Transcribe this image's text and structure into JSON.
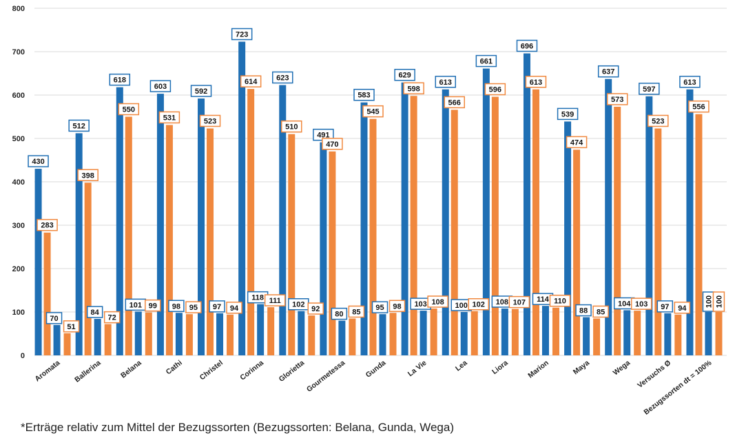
{
  "chart_data": {
    "type": "bar",
    "categories": [
      "Aromata",
      "Ballerina",
      "Belana",
      "Cathi",
      "Christel",
      "Corinna",
      "Glorietta",
      "Gourmetessa",
      "Gunda",
      "La Vie",
      "Lea",
      "Liora",
      "Marion",
      "Maya",
      "Wega",
      "Versuchs Ø",
      "Bezugssorten dt = 100%"
    ],
    "series": [
      {
        "color": "#1f6fb4",
        "values": [
          430,
          512,
          618,
          603,
          592,
          723,
          623,
          491,
          583,
          629,
          613,
          661,
          696,
          539,
          637,
          597,
          613
        ]
      },
      {
        "color": "#f0883e",
        "values": [
          283,
          398,
          550,
          531,
          523,
          614,
          510,
          470,
          545,
          598,
          566,
          596,
          613,
          474,
          573,
          523,
          556
        ]
      },
      {
        "color": "#1f6fb4",
        "values": [
          70,
          84,
          101,
          98,
          97,
          118,
          102,
          80,
          95,
          103,
          100,
          108,
          114,
          88,
          104,
          97,
          100
        ]
      },
      {
        "color": "#f0883e",
        "values": [
          51,
          72,
          99,
          95,
          94,
          111,
          92,
          85,
          98,
          108,
          102,
          107,
          110,
          85,
          103,
          94,
          100
        ]
      }
    ],
    "yticks": [
      "0",
      "100",
      "200",
      "300",
      "400",
      "500",
      "600",
      "700",
      "800"
    ],
    "ylim": [
      0,
      800
    ],
    "grid": true,
    "footnote": "*Erträge relativ zum Mittel der Bezugssorten (Bezugssorten: Belana, Gunda, Wega)"
  }
}
